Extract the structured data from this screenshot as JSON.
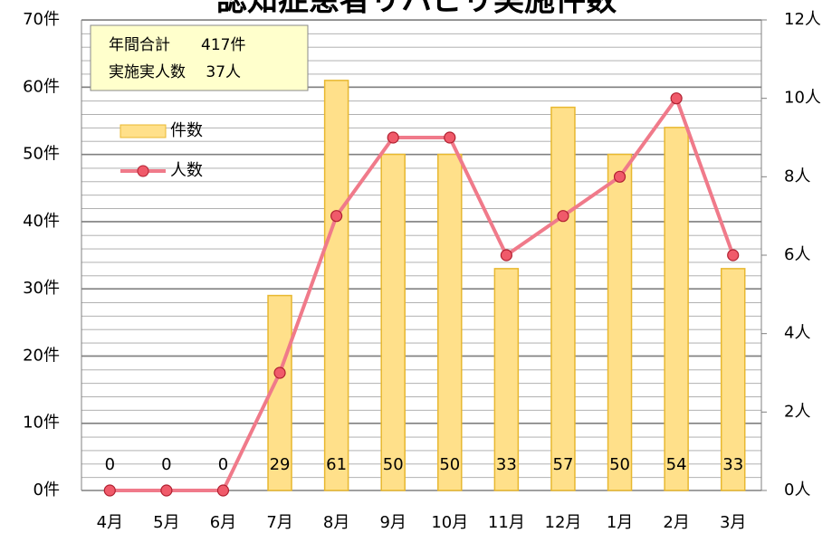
{
  "chart_data": {
    "type": "bar",
    "title": "認知症患者リハビリ実施件数",
    "annotations": [
      "年間合計　　417件",
      "実施実人数　 37人"
    ],
    "categories": [
      "4月",
      "5月",
      "6月",
      "7月",
      "8月",
      "9月",
      "10月",
      "11月",
      "12月",
      "1月",
      "2月",
      "3月"
    ],
    "series": [
      {
        "name": "件数",
        "type": "bar",
        "color": "#FFE08A",
        "values": [
          0,
          0,
          0,
          29,
          61,
          50,
          50,
          33,
          57,
          50,
          54,
          33
        ]
      },
      {
        "name": "人数",
        "type": "line",
        "axis": "y2",
        "color": "#F07A8A",
        "values": [
          0,
          0,
          0,
          3,
          7,
          9,
          9,
          6,
          7,
          8,
          10,
          6
        ]
      }
    ],
    "ylim": [
      0,
      70
    ],
    "yticks": [
      {
        "value": 0,
        "label": "0件"
      },
      {
        "value": 10,
        "label": "10件"
      },
      {
        "value": 20,
        "label": "20件"
      },
      {
        "value": 30,
        "label": "30件"
      },
      {
        "value": 40,
        "label": "40件"
      },
      {
        "value": 50,
        "label": "50件"
      },
      {
        "value": 60,
        "label": "60件"
      },
      {
        "value": 70,
        "label": "70件"
      }
    ],
    "y2lim": [
      0,
      12
    ],
    "y2ticks": [
      {
        "value": 0,
        "label": "0人"
      },
      {
        "value": 2,
        "label": "2人"
      },
      {
        "value": 4,
        "label": "4人"
      },
      {
        "value": 6,
        "label": "6人"
      },
      {
        "value": 8,
        "label": "8人"
      },
      {
        "value": 10,
        "label": "10人"
      },
      {
        "value": 12,
        "label": "12人"
      }
    ],
    "grid": true
  }
}
